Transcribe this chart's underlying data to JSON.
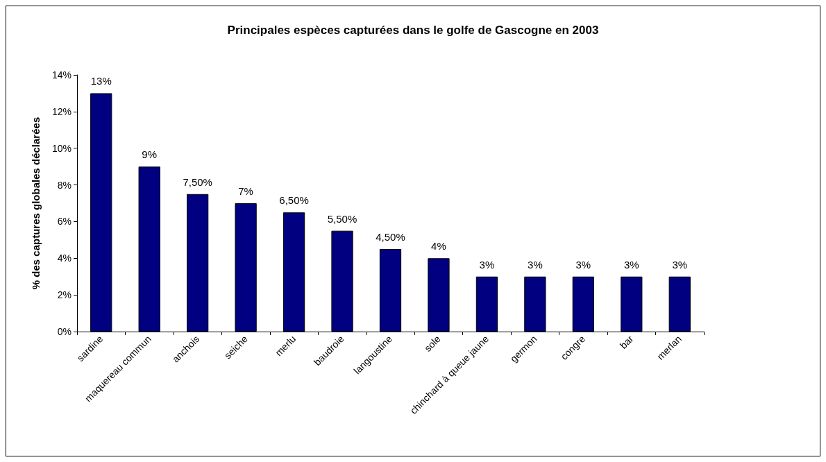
{
  "chart_data": {
    "type": "bar",
    "title": "Principales espèces capturées dans le golfe de Gascogne en 2003",
    "ylabel": "% des captures globales déclarées",
    "categories": [
      "sardine",
      "maquereau commun",
      "anchois",
      "seiche",
      "merlu",
      "baudroie",
      "langoustine",
      "sole",
      "chinchard à queue jaune",
      "germon",
      "congre",
      "bar",
      "merlan"
    ],
    "values": [
      13,
      9,
      7.5,
      7,
      6.5,
      5.5,
      4.5,
      4,
      3,
      3,
      3,
      3,
      3
    ],
    "value_labels": [
      "13%",
      "9%",
      "7,50%",
      "7%",
      "6,50%",
      "5,50%",
      "4,50%",
      "4%",
      "3%",
      "3%",
      "3%",
      "3%",
      "3%"
    ],
    "color": "#000080",
    "ylim": [
      0,
      14
    ],
    "yticks": [
      {
        "value": 0,
        "label": "0%"
      },
      {
        "value": 2,
        "label": "2%"
      },
      {
        "value": 4,
        "label": "4%"
      },
      {
        "value": 6,
        "label": "6%"
      },
      {
        "value": 8,
        "label": "8%"
      },
      {
        "value": 10,
        "label": "10%"
      },
      {
        "value": 12,
        "label": "12%"
      },
      {
        "value": 14,
        "label": "14%"
      }
    ],
    "grid": false
  }
}
